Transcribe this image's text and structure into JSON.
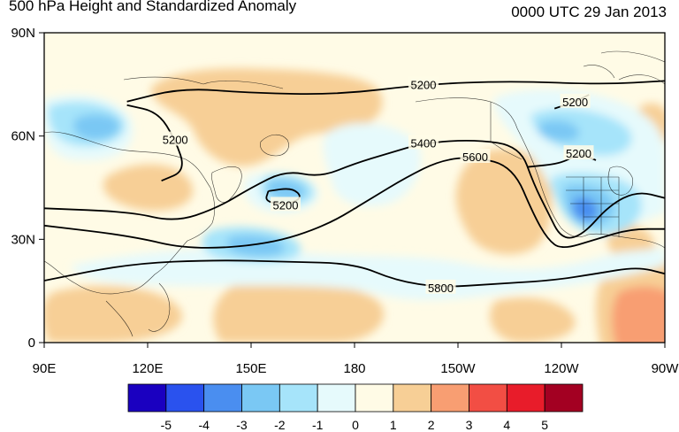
{
  "chart_data": {
    "type": "heatmap",
    "title": "500 hPa Height and Standardized Anomaly",
    "valid_time": "0000 UTC 29 Jan 2013",
    "x_ticks": [
      "90E",
      "120E",
      "150E",
      "180",
      "150W",
      "120W",
      "90W"
    ],
    "x_range_deg_east": [
      90,
      270
    ],
    "y_ticks": [
      "0",
      "30N",
      "60N",
      "90N"
    ],
    "y_range_deg_north": [
      0,
      90
    ],
    "colorbar": {
      "ticks": [
        "-5",
        "-4",
        "-3",
        "-2",
        "-1",
        "0",
        "1",
        "2",
        "3",
        "4",
        "5"
      ],
      "colors": [
        "#1a00c0",
        "#2a52ee",
        "#4a8ef0",
        "#7ac8f4",
        "#a6e4fa",
        "#e6fafc",
        "#fffbe6",
        "#f7cf96",
        "#f89e72",
        "#f24e44",
        "#e81c2a",
        "#a30022"
      ]
    },
    "contours": [
      {
        "label": "5200",
        "points": [
          [
            114,
            70
          ],
          [
            130,
            74
          ],
          [
            150,
            72.5
          ],
          [
            175,
            72
          ],
          [
            200,
            75
          ],
          [
            225,
            76
          ],
          [
            252,
            75
          ],
          [
            270,
            76
          ]
        ]
      },
      {
        "label": "5200",
        "points": [
          [
            114,
            69
          ],
          [
            123,
            67
          ],
          [
            128,
            59
          ],
          [
            131,
            50
          ],
          [
            124,
            47
          ]
        ]
      },
      {
        "label": "5200",
        "points": [
          [
            155,
            44
          ],
          [
            162,
            45
          ],
          [
            165,
            42
          ],
          [
            160,
            40
          ],
          [
            154,
            41
          ],
          [
            155,
            44
          ]
        ]
      },
      {
        "label": "5200",
        "points": [
          [
            230,
            51
          ],
          [
            240,
            52
          ],
          [
            245,
            55
          ],
          [
            250,
            53
          ]
        ]
      },
      {
        "label": "5200",
        "points": [
          [
            238,
            68
          ],
          [
            244,
            70
          ],
          [
            248,
            72
          ]
        ]
      },
      {
        "label": "5400",
        "points": [
          [
            90,
            39
          ],
          [
            115,
            38
          ],
          [
            128,
            35
          ],
          [
            140,
            39
          ],
          [
            150,
            45
          ],
          [
            160,
            50
          ],
          [
            170,
            48
          ],
          [
            180,
            52
          ],
          [
            190,
            55
          ],
          [
            200,
            58
          ],
          [
            215,
            59
          ],
          [
            228,
            57
          ],
          [
            232,
            46
          ],
          [
            236,
            38
          ],
          [
            240,
            30
          ],
          [
            246,
            31
          ],
          [
            254,
            40
          ],
          [
            262,
            44
          ],
          [
            270,
            42
          ]
        ]
      },
      {
        "label": "5600",
        "points": [
          [
            90,
            34
          ],
          [
            115,
            31
          ],
          [
            132,
            27
          ],
          [
            155,
            28.5
          ],
          [
            172,
            34
          ],
          [
            185,
            42
          ],
          [
            195,
            48
          ],
          [
            205,
            53
          ],
          [
            215,
            54
          ],
          [
            226,
            51
          ],
          [
            232,
            37
          ],
          [
            236,
            30
          ],
          [
            240,
            27
          ],
          [
            250,
            30
          ],
          [
            260,
            33
          ],
          [
            270,
            33
          ]
        ]
      },
      {
        "label": "5800",
        "points": [
          [
            90,
            18
          ],
          [
            115,
            23
          ],
          [
            140,
            24
          ],
          [
            160,
            23.5
          ],
          [
            180,
            23
          ],
          [
            192,
            18
          ],
          [
            205,
            16
          ],
          [
            220,
            17
          ],
          [
            237,
            18
          ],
          [
            250,
            20
          ],
          [
            262,
            22
          ],
          [
            270,
            20
          ]
        ]
      }
    ]
  }
}
